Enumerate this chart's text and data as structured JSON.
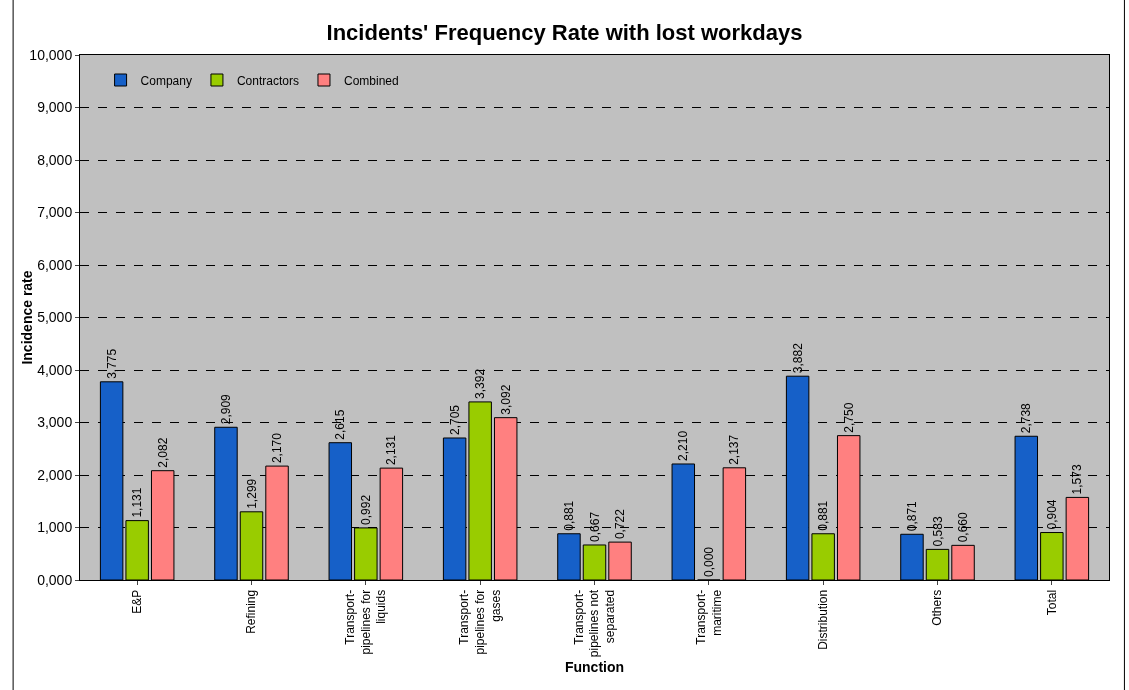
{
  "chart_data": {
    "type": "bar",
    "title": "Incidents' Frequency Rate with lost workdays",
    "xlabel": "Function",
    "ylabel": "Incidence rate",
    "categories": [
      "E&P",
      "Refining",
      "Transport-pipelines for liquids",
      "Transport-pipelines for gases",
      "Transport-pipelines not separated",
      "Transport-maritime",
      "Distribution",
      "Others",
      "Total"
    ],
    "series": [
      {
        "name": "Company",
        "color": "#1660c8",
        "values": [
          3.775,
          2.909,
          2.615,
          2.705,
          0.881,
          2.21,
          3.882,
          0.871,
          2.738
        ],
        "value_labels": [
          "3,775",
          "2,909",
          "2,615",
          "2,705",
          "0,881",
          "2,210",
          "3,882",
          "0,871",
          "2,738"
        ]
      },
      {
        "name": "Contractors",
        "color": "#99cc00",
        "values": [
          1.131,
          1.299,
          0.992,
          3.392,
          0.667,
          0,
          0.881,
          0.583,
          0.904
        ],
        "value_labels": [
          "1,131",
          "1,299",
          "0,992",
          "3,392",
          "0,667",
          "0,000",
          "0,881",
          "0,583",
          "0,904"
        ]
      },
      {
        "name": "Combined",
        "color": "#ff8080",
        "values": [
          2.082,
          2.17,
          2.131,
          3.092,
          0.722,
          2.137,
          2.75,
          0.66,
          1.573
        ],
        "value_labels": [
          "2,082",
          "2,170",
          "2,131",
          "3,092",
          "0,722",
          "2,137",
          "2,750",
          "0,660",
          "1,573"
        ]
      }
    ],
    "ylim": [
      0,
      10
    ],
    "yticks": [
      {
        "value": 0,
        "label": "0,000"
      },
      {
        "value": 1,
        "label": "1,000"
      },
      {
        "value": 2,
        "label": "2,000"
      },
      {
        "value": 3,
        "label": "3,000"
      },
      {
        "value": 4,
        "label": "4,000"
      },
      {
        "value": 5,
        "label": "5,000"
      },
      {
        "value": 6,
        "label": "6,000"
      },
      {
        "value": 7,
        "label": "7,000"
      },
      {
        "value": 8,
        "label": "8,000"
      },
      {
        "value": 9,
        "label": "9,000"
      },
      {
        "value": 10,
        "label": "10,000"
      }
    ],
    "grid": "y",
    "legend": "top left"
  }
}
